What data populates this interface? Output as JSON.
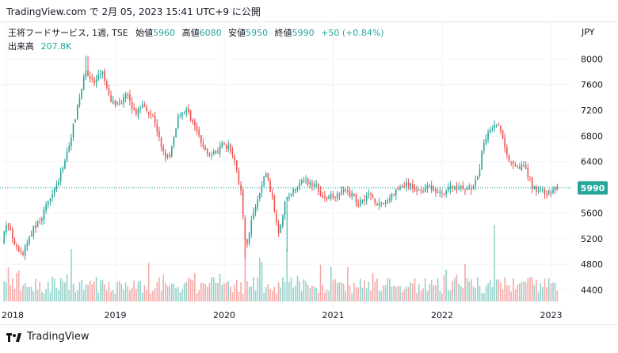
{
  "header": {
    "caption": "TradingView.com で 2月 05, 2023 15:41 UTC+9 に公開"
  },
  "legend": {
    "symbol": "王将フードサービス, 1週, TSE",
    "open_label": "始値",
    "open_value": "5960",
    "high_label": "高値",
    "high_value": "6080",
    "low_label": "安値",
    "low_value": "5950",
    "close_label": "終値",
    "close_value": "5990",
    "change": "+50 (+0.84%)",
    "volume_label": "出来高",
    "volume_value": "207.8K"
  },
  "footer": {
    "brand": "TradingView"
  },
  "colors": {
    "up": "#26a69a",
    "down": "#ef5350",
    "up_volume": "#93d2cb",
    "down_volume": "#f5a9a7",
    "grid": "#f0f3fa",
    "axis_text": "#131722",
    "price_tag": "#26a69a"
  },
  "chart_data": {
    "type": "candlestick",
    "currency": "JPY",
    "interval": "1 week",
    "last_price": 5990,
    "y_ticks": [
      4400,
      4800,
      5200,
      5600,
      6000,
      6400,
      6800,
      7200,
      7600,
      8000
    ],
    "x_ticks": [
      "2018",
      "2019",
      "2020",
      "2021",
      "2022",
      "2023"
    ],
    "ylim": [
      4320,
      8140
    ],
    "xlim": [
      2017.98,
      2023.1
    ],
    "grid": true,
    "price_path": [
      [
        2017.98,
        5150
      ],
      [
        2018.03,
        5450
      ],
      [
        2018.1,
        5050
      ],
      [
        2018.17,
        4950
      ],
      [
        2018.25,
        5300
      ],
      [
        2018.35,
        5550
      ],
      [
        2018.43,
        5900
      ],
      [
        2018.5,
        6100
      ],
      [
        2018.6,
        6700
      ],
      [
        2018.68,
        7300
      ],
      [
        2018.75,
        7850
      ],
      [
        2018.82,
        7600
      ],
      [
        2018.9,
        7800
      ],
      [
        2018.97,
        7350
      ],
      [
        2019.05,
        7300
      ],
      [
        2019.12,
        7450
      ],
      [
        2019.2,
        7150
      ],
      [
        2019.28,
        7300
      ],
      [
        2019.38,
        7050
      ],
      [
        2019.45,
        6550
      ],
      [
        2019.52,
        6450
      ],
      [
        2019.6,
        7150
      ],
      [
        2019.68,
        7200
      ],
      [
        2019.76,
        6900
      ],
      [
        2019.83,
        6600
      ],
      [
        2019.92,
        6500
      ],
      [
        2020.0,
        6650
      ],
      [
        2020.08,
        6600
      ],
      [
        2020.13,
        6300
      ],
      [
        2020.17,
        5950
      ],
      [
        2020.22,
        5050
      ],
      [
        2020.27,
        5500
      ],
      [
        2020.32,
        5750
      ],
      [
        2020.4,
        6250
      ],
      [
        2020.45,
        5900
      ],
      [
        2020.52,
        5300
      ],
      [
        2020.58,
        5800
      ],
      [
        2020.66,
        5950
      ],
      [
        2020.75,
        6100
      ],
      [
        2020.85,
        6050
      ],
      [
        2020.95,
        5800
      ],
      [
        2021.05,
        5900
      ],
      [
        2021.15,
        5950
      ],
      [
        2021.25,
        5750
      ],
      [
        2021.35,
        5900
      ],
      [
        2021.45,
        5700
      ],
      [
        2021.52,
        5800
      ],
      [
        2021.6,
        5950
      ],
      [
        2021.7,
        6050
      ],
      [
        2021.8,
        5950
      ],
      [
        2021.9,
        6000
      ],
      [
        2022.0,
        5900
      ],
      [
        2022.1,
        6000
      ],
      [
        2022.2,
        6000
      ],
      [
        2022.28,
        5950
      ],
      [
        2022.35,
        6150
      ],
      [
        2022.4,
        6700
      ],
      [
        2022.45,
        6900
      ],
      [
        2022.52,
        7000
      ],
      [
        2022.57,
        6850
      ],
      [
        2022.62,
        6450
      ],
      [
        2022.7,
        6350
      ],
      [
        2022.78,
        6300
      ],
      [
        2022.85,
        6000
      ],
      [
        2022.92,
        5950
      ],
      [
        2023.0,
        5900
      ],
      [
        2023.06,
        5990
      ]
    ],
    "spikes": [
      {
        "x": 2020.19,
        "low": 4900
      },
      {
        "x": 2020.57,
        "low": 5000
      },
      {
        "x": 2018.74,
        "high": 8050
      }
    ],
    "volume_spikes": [
      {
        "x": 2020.19,
        "level": 0.75
      },
      {
        "x": 2022.48,
        "level": 0.8
      },
      {
        "x": 2020.57,
        "level": 0.55
      },
      {
        "x": 2018.6,
        "level": 0.55
      }
    ]
  }
}
